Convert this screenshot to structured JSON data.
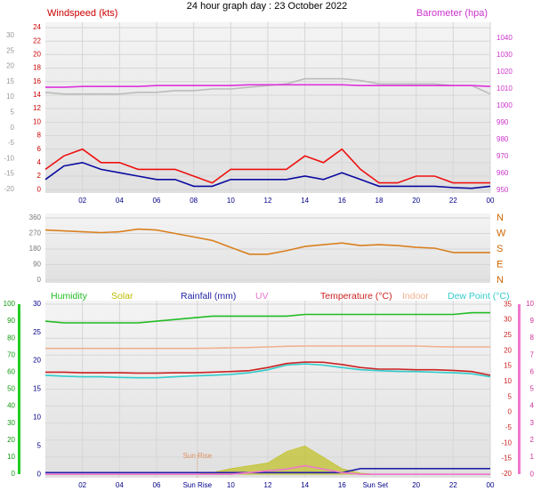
{
  "chart_data": [
    {
      "type": "line",
      "title": "24 hour graph day : 23 October 2022",
      "ylabel": "Windspeed (kts)",
      "y2label": "Barometer (hpa)",
      "x": [
        0,
        1,
        2,
        3,
        4,
        5,
        6,
        7,
        8,
        9,
        10,
        11,
        12,
        13,
        14,
        15,
        16,
        17,
        18,
        19,
        20,
        21,
        22,
        23,
        24
      ],
      "xlim": [
        0,
        24
      ],
      "xticks": [
        {
          "value": 2,
          "label": "02"
        },
        {
          "value": 4,
          "label": "04"
        },
        {
          "value": 6,
          "label": "06"
        },
        {
          "value": 8,
          "label": "08"
        },
        10,
        12,
        14,
        16,
        18,
        20,
        22,
        {
          "value": 24,
          "label": "00"
        }
      ],
      "ylim": [
        -0.5,
        24.8
      ],
      "yticks": [
        0,
        2,
        4,
        6,
        8,
        10,
        12,
        14,
        16,
        18,
        20,
        22,
        24
      ],
      "y2lim": [
        948.4,
        1049.5
      ],
      "y2ticks": [
        950,
        960,
        970,
        980,
        990,
        1000,
        1010,
        1020,
        1030,
        1040
      ],
      "y3lim": [
        -21.2,
        34.3
      ],
      "y3ticks": [
        -20,
        -15,
        -10,
        -5,
        0,
        5,
        10,
        15,
        20,
        25,
        30
      ],
      "grid": true,
      "series": [
        {
          "color": "#ee1111",
          "values": [
            3,
            5,
            6,
            4,
            4,
            3,
            3,
            3,
            2,
            1,
            3,
            3,
            3,
            3,
            5,
            4,
            6,
            3,
            1,
            1,
            2,
            2,
            1,
            1,
            1
          ]
        },
        {
          "color": "#0a0aa0",
          "values": [
            1.5,
            3.5,
            4,
            3,
            2.5,
            2,
            1.5,
            1.5,
            0.5,
            0.5,
            1.5,
            1.5,
            1.5,
            1.5,
            2,
            1.5,
            2.5,
            1.5,
            0.5,
            0.5,
            0.5,
            0.5,
            0.3,
            0.2,
            0.5
          ]
        },
        {
          "color": "#bbbbbb",
          "axis": "y2",
          "values": [
            1008,
            1007,
            1007,
            1007,
            1007,
            1008,
            1008,
            1009,
            1009,
            1010,
            1010,
            1011,
            1012,
            1013,
            1016,
            1016,
            1016,
            1015,
            1013,
            1013,
            1013,
            1013,
            1012,
            1012,
            1007
          ]
        },
        {
          "color": "#dd33dd",
          "axis": "y2",
          "values": [
            1011,
            1011,
            1011.5,
            1011.5,
            1011.5,
            1011.5,
            1012,
            1012,
            1012,
            1012,
            1012,
            1012.5,
            1012.5,
            1012.5,
            1012.5,
            1012.5,
            1012.5,
            1012,
            1012,
            1012,
            1012,
            1012,
            1012,
            1012,
            1011.5
          ]
        }
      ]
    },
    {
      "type": "line",
      "x": [
        0,
        1,
        2,
        3,
        4,
        5,
        6,
        7,
        8,
        9,
        10,
        11,
        12,
        13,
        14,
        15,
        16,
        17,
        18,
        19,
        20,
        21,
        22,
        23,
        24
      ],
      "xlim": [
        0,
        24
      ],
      "ylim": [
        -15.4,
        385.7
      ],
      "yticks": [
        0,
        90,
        180,
        270,
        360
      ],
      "y2lim": [
        -15.4,
        385.7
      ],
      "y2ticks": [
        {
          "value": 0,
          "label": "N"
        },
        {
          "value": 90,
          "label": "E"
        },
        {
          "value": 180,
          "label": "S"
        },
        {
          "value": 270,
          "label": "W"
        },
        {
          "value": 360,
          "label": "N"
        }
      ],
      "grid": true,
      "series": [
        {
          "color": "#d98020",
          "values": [
            290,
            285,
            280,
            275,
            280,
            295,
            290,
            270,
            250,
            230,
            190,
            150,
            150,
            170,
            195,
            205,
            215,
            200,
            205,
            200,
            190,
            185,
            160,
            160,
            160
          ]
        }
      ]
    },
    {
      "type": "line",
      "x": [
        0,
        1,
        2,
        3,
        4,
        5,
        6,
        7,
        8,
        9,
        10,
        11,
        12,
        13,
        14,
        15,
        16,
        17,
        18,
        19,
        20,
        21,
        22,
        23,
        24
      ],
      "xlim": [
        0,
        24
      ],
      "xticks": [
        {
          "value": 2,
          "label": "02"
        },
        {
          "value": 4,
          "label": "04"
        },
        {
          "value": 6,
          "label": "06"
        },
        {
          "value": 8.2,
          "label": "Sun Rise"
        },
        10,
        12,
        14,
        16,
        {
          "value": 17.8,
          "label": "Sun Set"
        },
        20,
        22,
        {
          "value": 24,
          "label": "00"
        }
      ],
      "annotations": [
        {
          "text": "Sun Rise",
          "x": 8.2
        }
      ],
      "ylim": [
        -2.1,
        102.1
      ],
      "yticks": [
        0,
        10,
        20,
        30,
        40,
        50,
        60,
        70,
        80,
        90,
        100
      ],
      "y2lim": [
        -21.2,
        36.2
      ],
      "y2ticks": [
        -20,
        -15,
        -10,
        -5,
        0,
        5,
        10,
        15,
        20,
        25,
        30,
        35
      ],
      "y3lim": [
        -0.6,
        30.6
      ],
      "y3ticks": [
        0,
        5,
        10,
        15,
        20,
        25,
        30
      ],
      "y4lim": [
        -0.2,
        10.2
      ],
      "y4ticks": [
        0,
        1,
        2,
        3,
        4,
        5,
        6,
        7,
        8,
        9,
        10
      ],
      "grid": true,
      "series": [
        {
          "name": "Humidity",
          "color": "#22bb22",
          "values": [
            90,
            89,
            89,
            89,
            89,
            89,
            90,
            91,
            92,
            93,
            93,
            93,
            93,
            93,
            94,
            94,
            94,
            94,
            94,
            94,
            94,
            94,
            94,
            95,
            95
          ]
        },
        {
          "name": "Solar",
          "color": "#bbbb00",
          "axis": "y3",
          "area": true,
          "values": [
            0,
            0,
            0,
            0,
            0,
            0,
            0,
            0,
            0,
            0.3,
            1,
            1.5,
            2,
            4,
            5,
            3,
            1,
            0.2,
            0,
            0,
            0,
            0,
            0,
            0,
            0
          ]
        },
        {
          "name": "Rainfall (mm)",
          "color": "#2222aa",
          "axis": "y3",
          "values": [
            0.3,
            0.3,
            0.3,
            0.3,
            0.3,
            0.3,
            0.3,
            0.3,
            0.3,
            0.3,
            0.3,
            0.3,
            0.3,
            0.3,
            0.3,
            0.3,
            0.3,
            1,
            1,
            1,
            1,
            1,
            1,
            1,
            1
          ]
        },
        {
          "name": "UV",
          "color": "#ee77cc",
          "axis": "y4",
          "values": [
            0,
            0,
            0,
            0,
            0,
            0,
            0,
            0,
            0,
            0,
            0,
            0.1,
            0.2,
            0.3,
            0.5,
            0.3,
            0.1,
            0,
            0,
            0,
            0,
            0,
            0,
            0,
            0
          ]
        },
        {
          "name": "Temperature (°C)",
          "color": "#cc2222",
          "axis": "y2",
          "values": [
            13,
            13,
            12.8,
            12.8,
            12.8,
            12.7,
            12.7,
            12.8,
            12.8,
            13,
            13.2,
            13.5,
            14.5,
            15.8,
            16.3,
            16.2,
            15.5,
            14.5,
            14,
            14,
            13.8,
            13.8,
            13.6,
            13.2,
            12
          ]
        },
        {
          "name": "Indoor",
          "color": "#f0b090",
          "axis": "y2",
          "values": [
            20.7,
            20.7,
            20.7,
            20.7,
            20.7,
            20.7,
            20.7,
            20.7,
            20.7,
            20.8,
            20.9,
            21,
            21.2,
            21.4,
            21.5,
            21.5,
            21.5,
            21.5,
            21.5,
            21.5,
            21.5,
            21.3,
            21.2,
            21.2,
            21.2
          ]
        },
        {
          "name": "Dew Point (°C)",
          "color": "#33cccc",
          "axis": "y2",
          "values": [
            12,
            11.7,
            11.5,
            11.5,
            11.3,
            11.2,
            11.2,
            11.5,
            11.8,
            12,
            12.3,
            12.8,
            13.8,
            15.3,
            15.7,
            15.3,
            14.5,
            13.8,
            13.5,
            13.3,
            13.2,
            13,
            12.8,
            12.5,
            11.5
          ]
        }
      ]
    }
  ]
}
